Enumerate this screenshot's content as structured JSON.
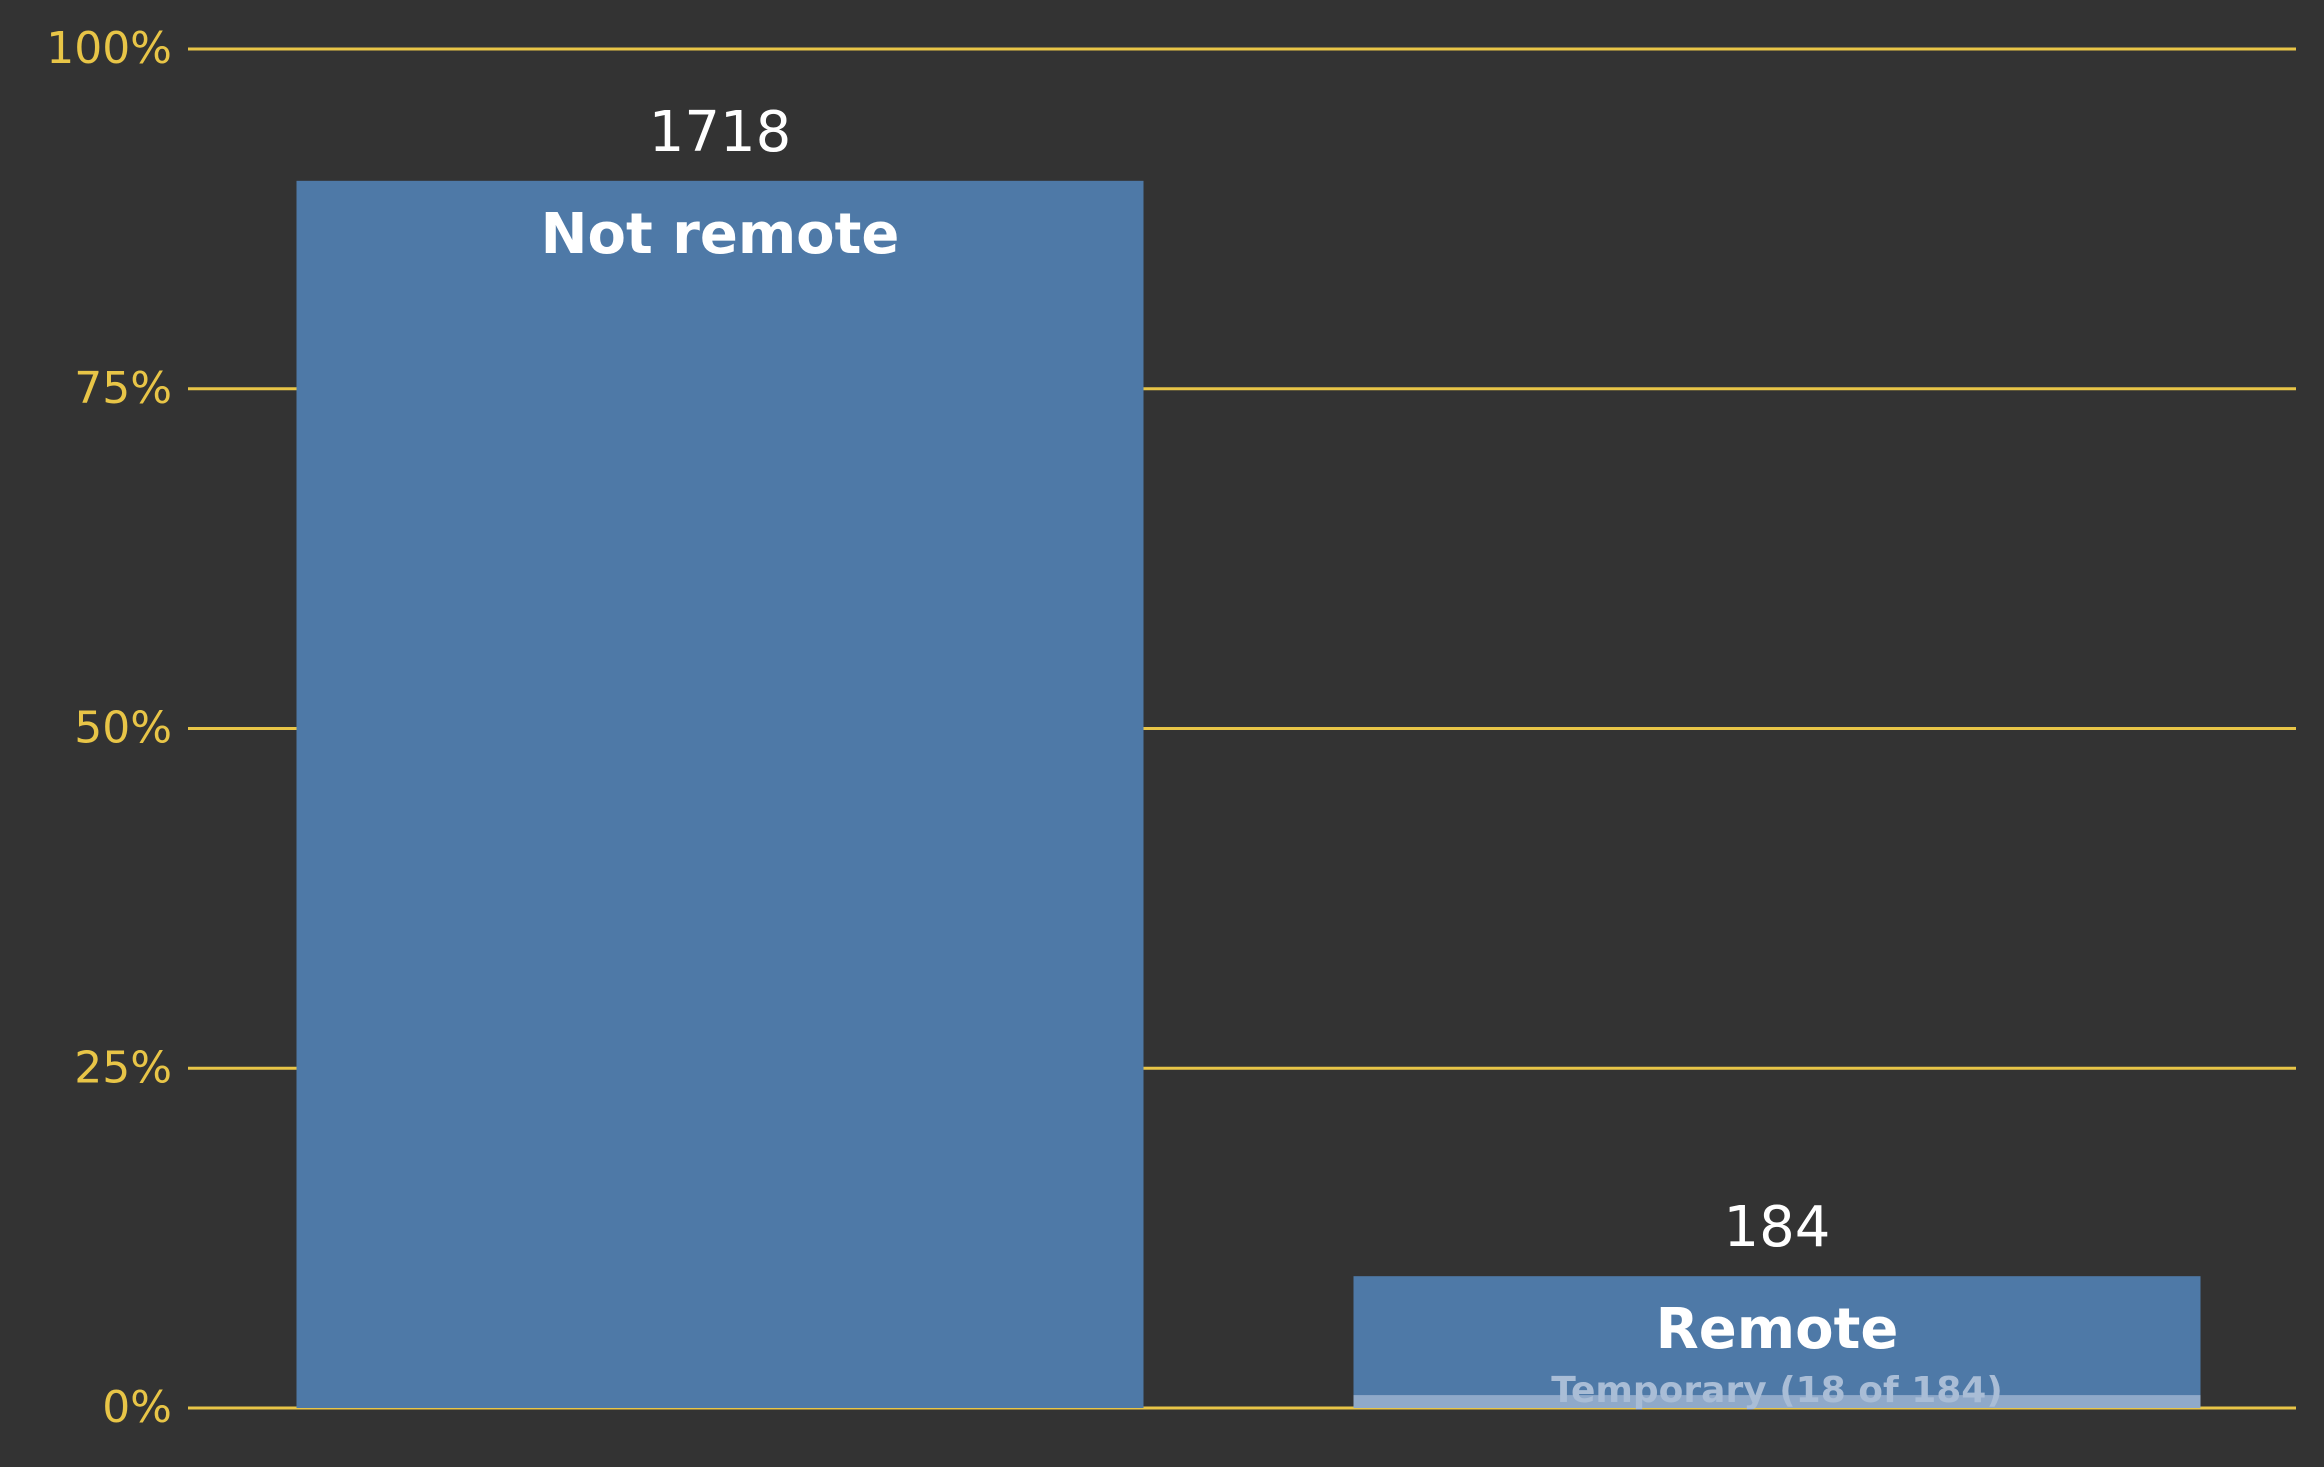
{
  "chart_data": {
    "type": "bar",
    "categories": [
      "Not remote",
      "Remote"
    ],
    "values": [
      1718,
      184
    ],
    "value_labels": [
      "1718",
      "184"
    ],
    "percentages": [
      90.3,
      9.7
    ],
    "sub_segment": {
      "category": "Remote",
      "label": "Temporary (18 of 184)",
      "count": 18,
      "of": 184,
      "percentage": 0.95
    },
    "ylim": [
      0,
      100
    ],
    "yticks": [
      0,
      25,
      50,
      75,
      100
    ],
    "ytick_labels": [
      "0%",
      "25%",
      "50%",
      "75%",
      "100%"
    ],
    "grid": true,
    "legend": "none",
    "colors": {
      "background": "#333333",
      "bar": "#4e79a7",
      "sub_segment": "#8fa9c9",
      "grid": "#e8c547",
      "tick_text": "#e8c547",
      "value_text": "#ffffff",
      "category_text": "#ffffff",
      "sub_text": "#a9bdd6"
    }
  }
}
